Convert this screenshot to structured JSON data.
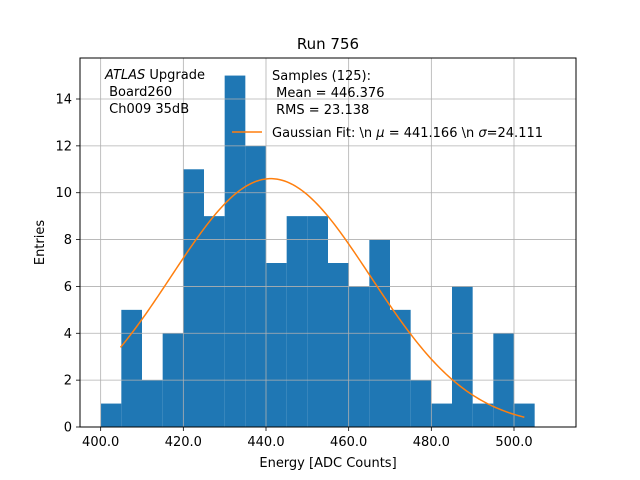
{
  "chart_data": {
    "type": "bar",
    "title": "Run 756",
    "xlabel": "Energy [ADC Counts]",
    "ylabel": "Entries",
    "xlim": [
      395.0,
      515.0
    ],
    "ylim": [
      0,
      15.75
    ],
    "grid": true,
    "xticks": [
      400,
      420,
      440,
      460,
      480,
      500
    ],
    "xtick_labels": [
      "400.0",
      "420.0",
      "440.0",
      "460.0",
      "480.0",
      "500.0"
    ],
    "yticks": [
      0,
      2,
      4,
      6,
      8,
      10,
      12,
      14
    ],
    "ytick_labels": [
      "0",
      "2",
      "4",
      "6",
      "8",
      "10",
      "12",
      "14"
    ],
    "histogram": {
      "bin_edges": [
        400.0,
        405.0,
        410.0,
        415.0,
        420.0,
        425.0,
        430.0,
        435.0,
        440.0,
        445.0,
        450.0,
        455.0,
        460.0,
        465.0,
        470.0,
        475.0,
        480.0,
        485.0,
        490.0,
        495.0,
        500.0,
        505.0
      ],
      "counts": [
        1,
        5,
        2,
        4,
        11,
        9,
        15,
        12,
        7,
        9,
        9,
        7,
        6,
        8,
        5,
        2,
        1,
        6,
        1,
        4,
        1
      ],
      "color": "#1f77b4"
    },
    "fit": {
      "name": "Gaussian Fit",
      "mu": 441.166,
      "sigma": 24.111,
      "amplitude": 10.6,
      "x_range": [
        404.8,
        502.5
      ],
      "color": "#ff7f0e"
    },
    "annotations": {
      "atlas_word": "ATLAS",
      "atlas_suffix": " Upgrade",
      "board": " Board260",
      "channel": " Ch009 35dB"
    },
    "legend": {
      "position": "top-right",
      "samples_line1": "Samples (125):",
      "samples_line2": " Mean = 446.376",
      "samples_line3": " RMS = 23.138",
      "fit_label_prefix": "Gaussian Fit: \\n ",
      "fit_mu_symbol": "μ",
      "fit_label_mid": " = 441.166 \\n ",
      "fit_sigma_symbol": "σ",
      "fit_label_suffix": "=24.111"
    }
  }
}
